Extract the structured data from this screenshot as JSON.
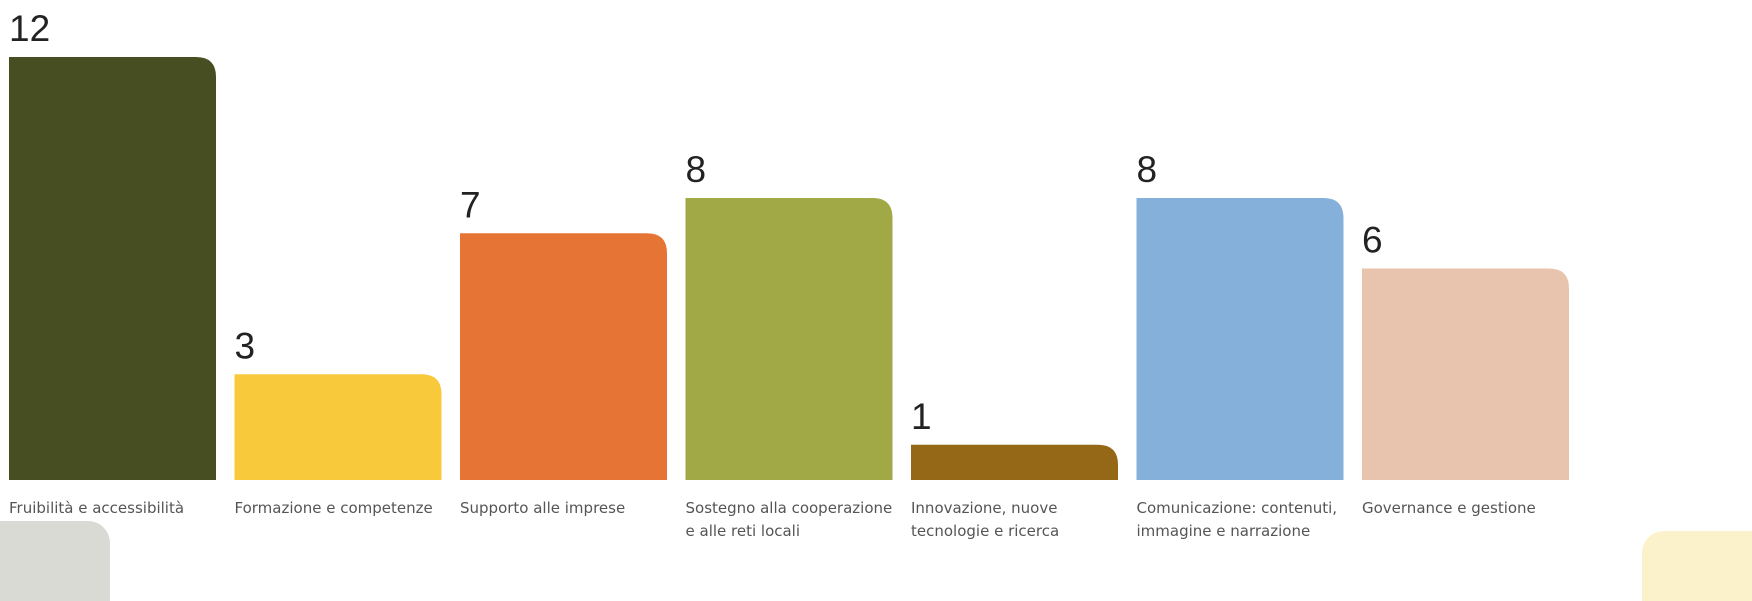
{
  "chart_data": {
    "type": "bar",
    "categories": [
      [
        "Fruibilità e accessibilità"
      ],
      [
        "Formazione e competenze"
      ],
      [
        "Supporto alle imprese"
      ],
      [
        "Sostegno alla cooperazione",
        "e alle reti locali"
      ],
      [
        "Innovazione, nuove",
        "tecnologie e ricerca"
      ],
      [
        "Comunicazione: contenuti,",
        "immagine e narrazione"
      ],
      [
        "Governance e gestione"
      ]
    ],
    "values": [
      12,
      3,
      7,
      8,
      1,
      8,
      6
    ],
    "colors": [
      "#474e22",
      "#f8c93b",
      "#e67535",
      "#a0a946",
      "#956818",
      "#84b0d9",
      "#e8c3ad"
    ],
    "ylim": [
      0,
      12
    ],
    "grid": false,
    "legend": "none"
  }
}
